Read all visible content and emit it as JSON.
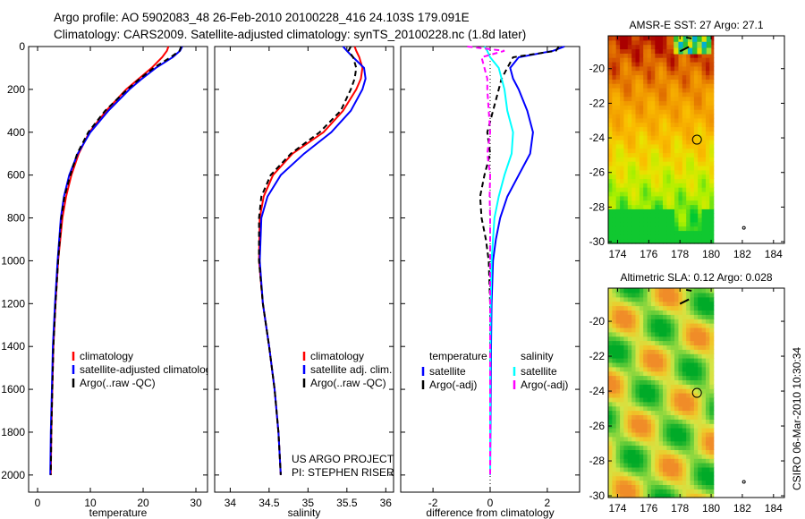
{
  "title": {
    "line1": "Argo profile: AO 5902083_48 26-Feb-2010 20100228_416 24.103S 179.091E",
    "line2": "Climatology: CARS2009. Satellite-adjusted climatology: synTS_20100228.nc (1.8d later)"
  },
  "credit": "CSIRO 06-Mar-2010 10:30:34",
  "project": {
    "line1": "US ARGO PROJECT",
    "line2": "PI: STEPHEN RISER"
  },
  "chart_data": [
    {
      "type": "line",
      "id": "temperature",
      "xlabel": "temperature",
      "ylabel": "",
      "xlim": [
        -1.7,
        32.2
      ],
      "ylim": [
        0,
        2080
      ],
      "y_reversed": true,
      "xticks": [
        "0",
        "10",
        "20",
        "30"
      ],
      "yticks": [
        "0",
        "200",
        "400",
        "600",
        "800",
        "1000",
        "1200",
        "1400",
        "1600",
        "1800",
        "2000"
      ],
      "legend": [
        "climatology",
        "satellite-adjusted climatology",
        "Argo(..raw -QC)"
      ],
      "legend_placement": "lower-right",
      "depth": [
        0,
        20,
        50,
        100,
        150,
        200,
        300,
        400,
        500,
        600,
        700,
        800,
        1000,
        1200,
        1400,
        1600,
        1800,
        2000
      ],
      "series": [
        {
          "name": "climatology",
          "color": "#ff0000",
          "values": [
            24.8,
            24.5,
            23.6,
            21.6,
            19.2,
            16.8,
            13.0,
            9.8,
            7.8,
            6.4,
            5.4,
            4.7,
            3.9,
            3.4,
            3.0,
            2.8,
            2.6,
            2.5
          ]
        },
        {
          "name": "satellite-adjusted climatology",
          "color": "#0000ff",
          "values": [
            27.4,
            27.0,
            25.6,
            22.4,
            19.8,
            17.4,
            13.4,
            10.0,
            7.6,
            6.0,
            5.0,
            4.4,
            3.8,
            3.3,
            2.9,
            2.7,
            2.5,
            2.4
          ]
        },
        {
          "name": "Argo(..raw -QC)",
          "color": "#000000",
          "dashed": true,
          "values": [
            27.2,
            26.9,
            25.2,
            22.0,
            19.4,
            17.0,
            12.8,
            9.6,
            7.5,
            6.2,
            5.1,
            4.5,
            3.9,
            3.4,
            3.0,
            2.8,
            2.6,
            2.5
          ]
        }
      ]
    },
    {
      "type": "line",
      "id": "salinity",
      "xlabel": "salinity",
      "xlim": [
        33.8,
        36.1
      ],
      "ylim": [
        0,
        2080
      ],
      "y_reversed": true,
      "xticks": [
        "34",
        "34.5",
        "35",
        "35.5",
        "36"
      ],
      "legend": [
        "climatology",
        "satellite adj. clim.",
        "Argo(..raw -QC)"
      ],
      "legend_placement": "lower-right",
      "depth": [
        0,
        20,
        50,
        100,
        150,
        200,
        300,
        400,
        500,
        600,
        700,
        800,
        1000,
        1200,
        1400,
        1600,
        1800,
        2000
      ],
      "series": [
        {
          "name": "climatology",
          "color": "#ff0000",
          "values": [
            35.6,
            35.62,
            35.66,
            35.7,
            35.68,
            35.62,
            35.45,
            35.2,
            34.8,
            34.55,
            34.43,
            34.38,
            34.37,
            34.42,
            34.5,
            34.57,
            34.62,
            34.65
          ]
        },
        {
          "name": "satellite adj. clim.",
          "color": "#0000ff",
          "values": [
            35.45,
            35.5,
            35.58,
            35.72,
            35.74,
            35.7,
            35.55,
            35.3,
            34.95,
            34.65,
            34.48,
            34.4,
            34.38,
            34.42,
            34.5,
            34.57,
            34.62,
            34.65
          ]
        },
        {
          "name": "Argo(..raw -QC)",
          "color": "#000000",
          "dashed": true,
          "values": [
            35.55,
            35.52,
            35.58,
            35.62,
            35.6,
            35.55,
            35.42,
            35.15,
            34.78,
            34.52,
            34.4,
            34.37,
            34.37,
            34.42,
            34.5,
            34.57,
            34.62,
            34.65
          ]
        }
      ]
    },
    {
      "type": "line",
      "id": "difference",
      "xlabel": "difference from climatology",
      "xlim": [
        -3.13,
        3.13
      ],
      "ylim": [
        0,
        2080
      ],
      "y_reversed": true,
      "xticks": [
        "-2",
        "0",
        "2"
      ],
      "legend_titles": [
        "temperature",
        "salinity"
      ],
      "legend": [
        "satellite",
        "Argo(-adj)",
        "satellite",
        "Argo(-adj)"
      ],
      "legend_placement": "lower-center",
      "depth": [
        0,
        20,
        50,
        100,
        150,
        200,
        300,
        400,
        500,
        600,
        700,
        800,
        900,
        1000,
        1200,
        1400,
        1600,
        1800,
        2000
      ],
      "series": [
        {
          "name": "temperature satellite",
          "color": "#0000ff",
          "values": [
            2.6,
            2.2,
            1.0,
            0.7,
            0.8,
            1.0,
            1.3,
            1.5,
            1.4,
            1.0,
            0.6,
            0.35,
            0.2,
            0.1,
            0.05,
            0.03,
            0.02,
            0.01,
            0.0
          ]
        },
        {
          "name": "temperature Argo(-adj)",
          "color": "#000000",
          "dashed": true,
          "values": [
            2.4,
            2.3,
            0.8,
            0.6,
            0.4,
            0.3,
            0.1,
            -0.1,
            0.0,
            -0.2,
            -0.35,
            -0.3,
            -0.15,
            -0.05,
            0.0,
            0.0,
            0.0,
            0.0,
            0.0
          ]
        },
        {
          "name": "salinity satellite",
          "color": "#00ffff",
          "values": [
            -0.2,
            -0.1,
            0.0,
            0.3,
            0.4,
            0.5,
            0.6,
            0.8,
            0.75,
            0.5,
            0.3,
            0.15,
            0.1,
            0.05,
            0.02,
            0.01,
            0.0,
            0.0,
            0.0
          ]
        },
        {
          "name": "salinity Argo(-adj)",
          "color": "#ff00ff",
          "dashed": true,
          "values": [
            -0.8,
            0.5,
            -0.3,
            -0.2,
            -0.1,
            -0.1,
            -0.05,
            0.0,
            -0.1,
            0.0,
            -0.02,
            0.0,
            0.0,
            0.0,
            0.0,
            0.0,
            0.0,
            0.0,
            0.0
          ]
        }
      ]
    },
    {
      "type": "heatmap",
      "id": "sst-map",
      "title": "AMSR-E SST: 27 Argo: 27.1",
      "xlim": [
        173.4,
        184.7
      ],
      "ylim": [
        -30.1,
        -18.1
      ],
      "xticks": [
        "174",
        "176",
        "178",
        "180",
        "182",
        "184"
      ],
      "yticks": [
        "-20",
        "-22",
        "-24",
        "-26",
        "-28",
        "-30"
      ],
      "data_lon_max": 180,
      "marker": {
        "lon": 179.091,
        "lat": -24.103
      }
    },
    {
      "type": "heatmap",
      "id": "sla-map",
      "title": "Altimetric SLA: 0.12 Argo: 0.028",
      "xlim": [
        173.4,
        184.7
      ],
      "ylim": [
        -30.1,
        -18.1
      ],
      "xticks": [
        "174",
        "176",
        "178",
        "180",
        "182",
        "184"
      ],
      "yticks": [
        "-20",
        "-22",
        "-24",
        "-26",
        "-28",
        "-30"
      ],
      "data_lon_max": 180,
      "marker": {
        "lon": 179.091,
        "lat": -24.103
      }
    }
  ]
}
